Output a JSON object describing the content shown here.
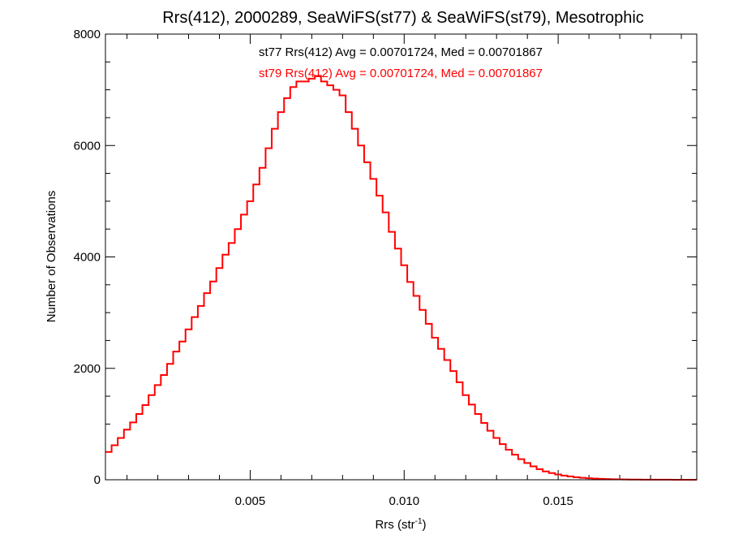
{
  "chart_data": {
    "type": "line",
    "title": "Rrs(412), 2000289, SeaWiFS(st77) & SeaWiFS(st79), Mesotrophic",
    "xlabel": "Rrs (str",
    "xlabel_sup": "-1",
    "xlabel_close": ")",
    "ylabel": "Number of Observations",
    "xlim": [
      0.0003,
      0.0195
    ],
    "ylim": [
      0,
      8000
    ],
    "x_ticks": [
      0.005,
      0.01,
      0.015
    ],
    "x_tick_labels": [
      "0.005",
      "0.010",
      "0.015"
    ],
    "y_ticks": [
      0,
      2000,
      4000,
      6000,
      8000
    ],
    "y_tick_labels": [
      "0",
      "2000",
      "4000",
      "6000",
      "8000"
    ],
    "grid": false,
    "annotations": [
      {
        "text": "st77 Rrs(412) Avg = 0.00701724, Med = 0.00701867",
        "color": "#000000"
      },
      {
        "text": "st79 Rrs(412) Avg = 0.00701724, Med = 0.00701867",
        "color": "#ff0000"
      }
    ],
    "series": [
      {
        "color": "#ff0000",
        "step": true,
        "x": [
          0.0003,
          0.0005,
          0.0007,
          0.0009,
          0.0011,
          0.0013,
          0.0015,
          0.0017,
          0.0019,
          0.0021,
          0.0023,
          0.0025,
          0.0027,
          0.0029,
          0.0031,
          0.0033,
          0.0035,
          0.0037,
          0.0039,
          0.0041,
          0.0043,
          0.0045,
          0.0047,
          0.0049,
          0.0051,
          0.0053,
          0.0055,
          0.0057,
          0.0059,
          0.0061,
          0.0063,
          0.0065,
          0.0067,
          0.0069,
          0.0071,
          0.0073,
          0.0075,
          0.0077,
          0.0079,
          0.0081,
          0.0083,
          0.0085,
          0.0087,
          0.0089,
          0.0091,
          0.0093,
          0.0095,
          0.0097,
          0.0099,
          0.0101,
          0.0103,
          0.0105,
          0.0107,
          0.0109,
          0.0111,
          0.0113,
          0.0115,
          0.0117,
          0.0119,
          0.0121,
          0.0123,
          0.0125,
          0.0127,
          0.0129,
          0.0131,
          0.0133,
          0.0135,
          0.0137,
          0.0139,
          0.0141,
          0.0143,
          0.0145,
          0.0147,
          0.0149,
          0.0151,
          0.0153,
          0.0155,
          0.0157,
          0.0159,
          0.0161,
          0.0163,
          0.0165,
          0.0167,
          0.0169,
          0.0171,
          0.0173,
          0.0175,
          0.0177,
          0.0179,
          0.0181,
          0.0183,
          0.0185,
          0.0187,
          0.0189,
          0.0191,
          0.0193,
          0.0195
        ],
        "values": [
          500,
          620,
          750,
          900,
          1030,
          1180,
          1340,
          1520,
          1700,
          1880,
          2080,
          2300,
          2480,
          2700,
          2920,
          3120,
          3350,
          3560,
          3800,
          4040,
          4250,
          4500,
          4760,
          5000,
          5300,
          5600,
          5950,
          6300,
          6600,
          6850,
          7050,
          7150,
          7150,
          7200,
          7250,
          7150,
          7080,
          7000,
          6900,
          6600,
          6300,
          6000,
          5700,
          5400,
          5100,
          4800,
          4450,
          4150,
          3850,
          3550,
          3300,
          3050,
          2800,
          2550,
          2350,
          2150,
          1950,
          1750,
          1520,
          1350,
          1180,
          1020,
          880,
          750,
          640,
          540,
          450,
          370,
          300,
          240,
          190,
          150,
          120,
          95,
          75,
          60,
          45,
          35,
          28,
          22,
          16,
          12,
          9,
          7,
          5,
          4,
          3,
          2,
          2,
          1,
          1,
          1,
          0,
          0,
          0,
          0,
          0
        ]
      }
    ]
  }
}
